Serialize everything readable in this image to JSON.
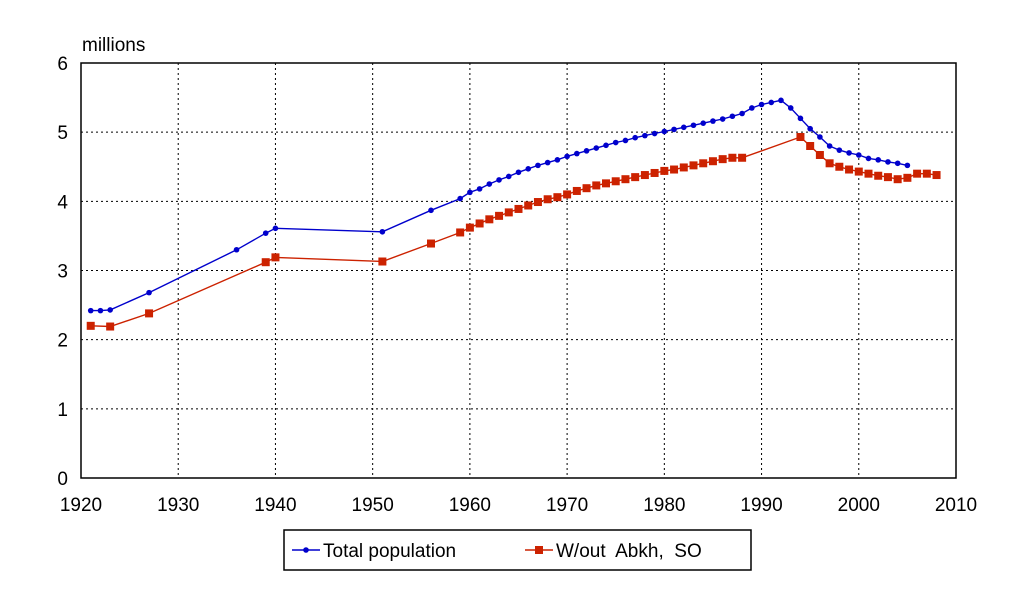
{
  "chart_data": {
    "type": "line",
    "title": "",
    "ylabel": "millions",
    "xlabel": "",
    "xlim": [
      1920,
      2010
    ],
    "ylim": [
      0,
      6
    ],
    "x_ticks": [
      1920,
      1930,
      1940,
      1950,
      1960,
      1970,
      1980,
      1990,
      2000,
      2010
    ],
    "y_ticks": [
      0,
      1,
      2,
      3,
      4,
      5,
      6
    ],
    "grid": true,
    "legend_position": "bottom",
    "series": [
      {
        "name": "Total population",
        "color": "#0000cc",
        "marker": "circle",
        "x": [
          1921,
          1922,
          1923,
          1927,
          1936,
          1939,
          1940,
          1951,
          1956,
          1959,
          1960,
          1961,
          1962,
          1963,
          1964,
          1965,
          1966,
          1967,
          1968,
          1969,
          1970,
          1971,
          1972,
          1973,
          1974,
          1975,
          1976,
          1977,
          1978,
          1979,
          1980,
          1981,
          1982,
          1983,
          1984,
          1985,
          1986,
          1987,
          1988,
          1989,
          1990,
          1991,
          1992,
          1993,
          1994,
          1995,
          1996,
          1997,
          1998,
          1999,
          2000,
          2001,
          2002,
          2003,
          2004,
          2005
        ],
        "y": [
          2.42,
          2.42,
          2.43,
          2.68,
          3.3,
          3.54,
          3.61,
          3.56,
          3.87,
          4.04,
          4.13,
          4.18,
          4.25,
          4.31,
          4.36,
          4.42,
          4.47,
          4.52,
          4.56,
          4.6,
          4.65,
          4.69,
          4.73,
          4.77,
          4.81,
          4.85,
          4.88,
          4.92,
          4.95,
          4.98,
          5.01,
          5.04,
          5.07,
          5.1,
          5.13,
          5.16,
          5.19,
          5.23,
          5.27,
          5.35,
          5.4,
          5.43,
          5.46,
          5.35,
          5.2,
          5.05,
          4.93,
          4.8,
          4.74,
          4.7,
          4.67,
          4.62,
          4.6,
          4.57,
          4.55,
          4.52
        ]
      },
      {
        "name": "W/out  Abkh,  SO",
        "color": "#cc2200",
        "marker": "square",
        "x": [
          1921,
          1923,
          1927,
          1939,
          1940,
          1951,
          1956,
          1959,
          1960,
          1961,
          1962,
          1963,
          1964,
          1965,
          1966,
          1967,
          1968,
          1969,
          1970,
          1971,
          1972,
          1973,
          1974,
          1975,
          1976,
          1977,
          1978,
          1979,
          1980,
          1981,
          1982,
          1983,
          1984,
          1985,
          1986,
          1987,
          1988,
          1994,
          1995,
          1996,
          1997,
          1998,
          1999,
          2000,
          2001,
          2002,
          2003,
          2004,
          2005,
          2006,
          2007,
          2008
        ],
        "y": [
          2.2,
          2.19,
          2.38,
          3.12,
          3.19,
          3.13,
          3.39,
          3.55,
          3.62,
          3.68,
          3.74,
          3.79,
          3.84,
          3.89,
          3.94,
          3.99,
          4.03,
          4.06,
          4.1,
          4.15,
          4.19,
          4.23,
          4.26,
          4.29,
          4.32,
          4.35,
          4.38,
          4.41,
          4.44,
          4.46,
          4.49,
          4.52,
          4.55,
          4.58,
          4.61,
          4.63,
          4.63,
          4.93,
          4.8,
          4.67,
          4.55,
          4.5,
          4.46,
          4.43,
          4.4,
          4.37,
          4.35,
          4.32,
          4.34,
          4.4,
          4.4,
          4.38
        ]
      }
    ]
  }
}
